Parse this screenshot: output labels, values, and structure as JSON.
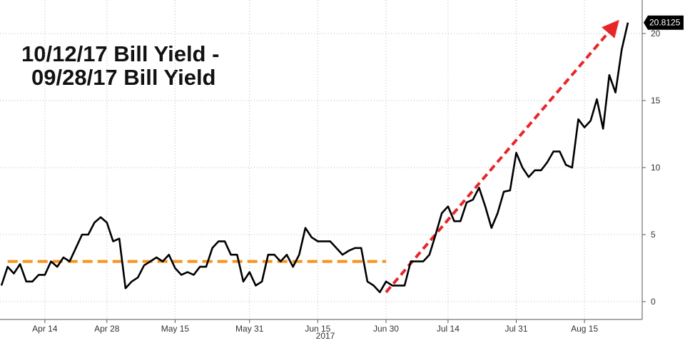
{
  "chart_data": {
    "type": "line",
    "title_lines": [
      "10/12/17 Bill Yield -",
      "09/28/17 Bill Yield"
    ],
    "x": [
      "2017-04-05",
      "2017-04-06",
      "2017-04-07",
      "2017-04-10",
      "2017-04-11",
      "2017-04-12",
      "2017-04-13",
      "2017-04-14",
      "2017-04-17",
      "2017-04-18",
      "2017-04-19",
      "2017-04-20",
      "2017-04-21",
      "2017-04-24",
      "2017-04-25",
      "2017-04-26",
      "2017-04-27",
      "2017-04-28",
      "2017-05-01",
      "2017-05-02",
      "2017-05-03",
      "2017-05-04",
      "2017-05-05",
      "2017-05-08",
      "2017-05-09",
      "2017-05-10",
      "2017-05-11",
      "2017-05-12",
      "2017-05-15",
      "2017-05-16",
      "2017-05-17",
      "2017-05-18",
      "2017-05-19",
      "2017-05-22",
      "2017-05-23",
      "2017-05-24",
      "2017-05-25",
      "2017-05-26",
      "2017-05-29",
      "2017-05-30",
      "2017-05-31",
      "2017-06-01",
      "2017-06-02",
      "2017-06-05",
      "2017-06-06",
      "2017-06-07",
      "2017-06-08",
      "2017-06-09",
      "2017-06-12",
      "2017-06-13",
      "2017-06-14",
      "2017-06-15",
      "2017-06-16",
      "2017-06-19",
      "2017-06-20",
      "2017-06-21",
      "2017-06-22",
      "2017-06-23",
      "2017-06-26",
      "2017-06-27",
      "2017-06-28",
      "2017-06-29",
      "2017-06-30",
      "2017-07-03",
      "2017-07-04",
      "2017-07-05",
      "2017-07-06",
      "2017-07-07",
      "2017-07-10",
      "2017-07-11",
      "2017-07-12",
      "2017-07-13",
      "2017-07-14",
      "2017-07-17",
      "2017-07-18",
      "2017-07-19",
      "2017-07-20",
      "2017-07-21",
      "2017-07-24",
      "2017-07-25",
      "2017-07-26",
      "2017-07-27",
      "2017-07-28",
      "2017-07-31",
      "2017-08-01",
      "2017-08-02",
      "2017-08-03",
      "2017-08-04",
      "2017-08-07",
      "2017-08-08",
      "2017-08-09",
      "2017-08-10",
      "2017-08-11",
      "2017-08-14",
      "2017-08-15",
      "2017-08-16",
      "2017-08-17",
      "2017-08-18",
      "2017-08-21",
      "2017-08-22",
      "2017-08-23",
      "2017-08-24"
    ],
    "series": [
      {
        "color": "#000000",
        "values": [
          1.2,
          2.6,
          2.1,
          2.8,
          1.5,
          1.5,
          2.0,
          2.0,
          3.0,
          2.6,
          3.3,
          3.0,
          4.0,
          5.0,
          5.0,
          5.9,
          6.3,
          5.9,
          4.5,
          4.7,
          1.0,
          1.5,
          1.8,
          2.7,
          3.0,
          3.3,
          3.0,
          3.5,
          2.5,
          2.0,
          2.2,
          2.0,
          2.6,
          2.6,
          4.0,
          4.5,
          4.5,
          3.5,
          3.5,
          1.5,
          2.2,
          1.2,
          1.5,
          3.5,
          3.5,
          3.0,
          3.5,
          2.6,
          3.5,
          5.5,
          4.8,
          4.5,
          4.5,
          4.5,
          4.0,
          3.5,
          3.8,
          4.0,
          4.0,
          1.5,
          1.2,
          0.7,
          1.5,
          1.2,
          1.2,
          1.2,
          3.0,
          3.0,
          3.0,
          3.5,
          5.0,
          6.6,
          7.1,
          6.0,
          6.0,
          7.4,
          7.6,
          8.5,
          7.1,
          5.5,
          6.6,
          8.2,
          8.3,
          11.1,
          10.0,
          9.3,
          9.8,
          9.8,
          10.4,
          11.2,
          11.2,
          10.2,
          10.0,
          13.6,
          13.0,
          13.5,
          15.1,
          12.9,
          16.9,
          15.6,
          18.8,
          20.8125
        ]
      }
    ],
    "xticks": [
      {
        "value": "2017-04-14",
        "label": "Apr 14"
      },
      {
        "value": "2017-04-28",
        "label": "Apr 28"
      },
      {
        "value": "2017-05-15",
        "label": "May 15"
      },
      {
        "value": "2017-05-31",
        "label": "May 31"
      },
      {
        "value": "2017-06-15",
        "label": "Jun 15"
      },
      {
        "value": "2017-06-30",
        "label": "Jun 30"
      },
      {
        "value": "2017-07-14",
        "label": "Jul 14"
      },
      {
        "value": "2017-07-31",
        "label": "Jul 31"
      },
      {
        "value": "2017-08-15",
        "label": "Aug 15"
      }
    ],
    "year_label": "2017",
    "ylim": [
      -1.33,
      22.5
    ],
    "yticks": [
      0,
      5,
      10,
      15,
      20
    ],
    "grid": true,
    "annotations": [
      {
        "color": "#f7931e",
        "x": [
          "2017-04-06",
          "2017-06-30"
        ],
        "y": [
          3,
          3
        ]
      },
      {
        "color": "#e8262a",
        "arrow": true,
        "x": [
          "2017-06-30",
          "2017-08-22"
        ],
        "y": [
          0.7,
          20.7
        ]
      }
    ]
  }
}
